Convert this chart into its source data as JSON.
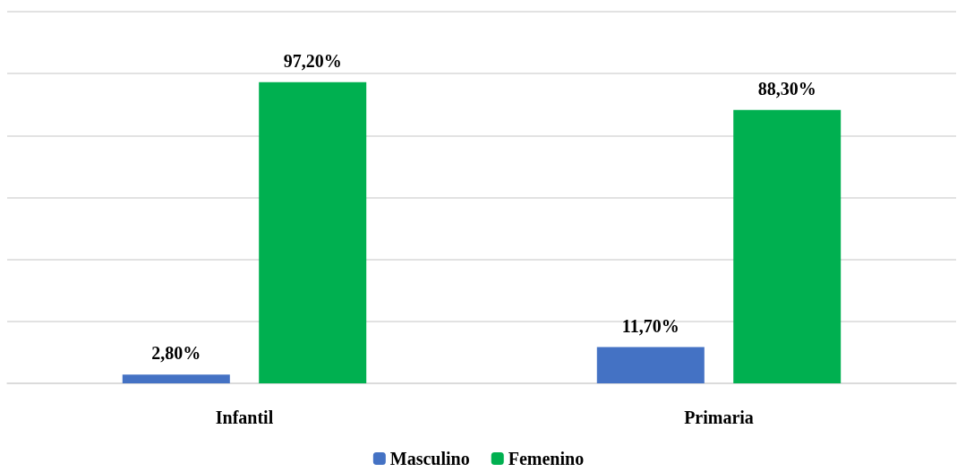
{
  "chart_data": {
    "type": "bar",
    "categories": [
      "Infantil",
      "Primaria"
    ],
    "series": [
      {
        "name": "Masculino",
        "color": "#4472c4",
        "values": [
          2.8,
          11.7
        ],
        "value_labels": [
          "2,80%",
          "11,70%"
        ]
      },
      {
        "name": "Femenino",
        "color": "#00b050",
        "values": [
          97.2,
          88.3
        ],
        "value_labels": [
          "97,20%",
          "88,30%"
        ]
      }
    ],
    "ylim": [
      0,
      120
    ],
    "yticks": [
      {
        "value": 0,
        "label": null
      },
      {
        "value": 20,
        "label": null
      },
      {
        "value": 40,
        "label": null
      },
      {
        "value": 60,
        "label": null
      },
      {
        "value": 80,
        "label": null
      },
      {
        "value": 100,
        "label": null
      },
      {
        "value": 120,
        "label": null
      }
    ],
    "tick_labels": "x",
    "grid": "y",
    "legend": "bottom"
  }
}
